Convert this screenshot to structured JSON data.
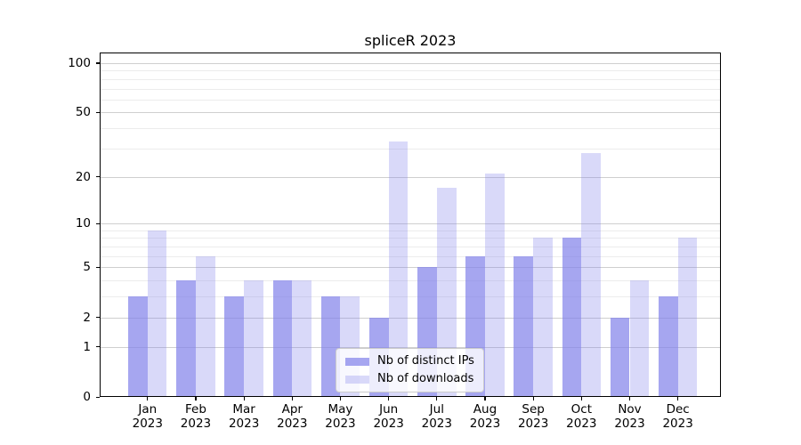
{
  "title": "spliceR 2023",
  "chart_data": {
    "type": "bar",
    "title": "spliceR 2023",
    "categories": [
      "Jan",
      "Feb",
      "Mar",
      "Apr",
      "May",
      "Jun",
      "Jul",
      "Aug",
      "Sep",
      "Oct",
      "Nov",
      "Dec"
    ],
    "xtick_second_line": "2023",
    "series": [
      {
        "name": "Nb of distinct IPs",
        "color": "rgba(128,128,234,0.7)",
        "values": [
          3,
          4,
          3,
          4,
          3,
          2,
          5,
          6,
          6,
          8,
          2,
          3
        ]
      },
      {
        "name": "Nb of downloads",
        "color": "rgba(128,128,234,0.3)",
        "values": [
          9,
          6,
          4,
          4,
          3,
          33,
          17,
          21,
          8,
          28,
          4,
          8
        ]
      }
    ],
    "xlabel": "",
    "ylabel": "",
    "yscale": "log1p",
    "ylim": [
      0,
      115
    ],
    "yticks": [
      0,
      1,
      2,
      5,
      10,
      20,
      50,
      100
    ],
    "minor_gridlines": [
      3,
      4,
      6,
      7,
      8,
      9,
      30,
      40,
      60,
      70,
      80,
      90
    ],
    "grid": true,
    "legend_position": "lower-center",
    "colors": {
      "axis": "#000000",
      "major_grid": "#cfcfcf",
      "minor_grid": "#ececec",
      "background": "#ffffff"
    }
  }
}
